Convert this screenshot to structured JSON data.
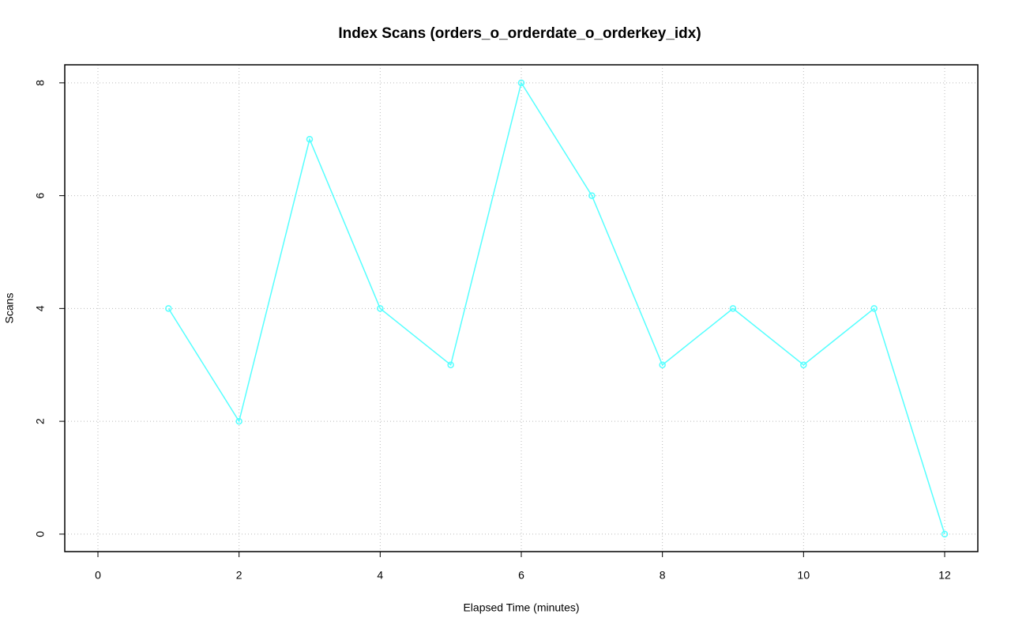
{
  "chart_data": {
    "type": "line",
    "title": "Index Scans (orders_o_orderdate_o_orderkey_idx)",
    "x_label": "Elapsed Time (minutes)",
    "y_label": "Scans",
    "x": [
      1,
      2,
      3,
      4,
      5,
      6,
      7,
      8,
      9,
      10,
      11,
      12
    ],
    "series": [
      {
        "name": "orders_o_orderdate_o_orderkey_idx",
        "color": "#55ffff",
        "values": [
          4,
          2,
          7,
          4,
          3,
          8,
          6,
          3,
          4,
          3,
          4,
          0
        ]
      }
    ],
    "xlim": [
      -0.47,
      12.47
    ],
    "xticks": [
      0,
      2,
      4,
      6,
      8,
      10,
      12
    ],
    "ylim": [
      -0.31,
      8.32
    ],
    "yticks": [
      0,
      2,
      4,
      6,
      8
    ],
    "grid": true
  }
}
